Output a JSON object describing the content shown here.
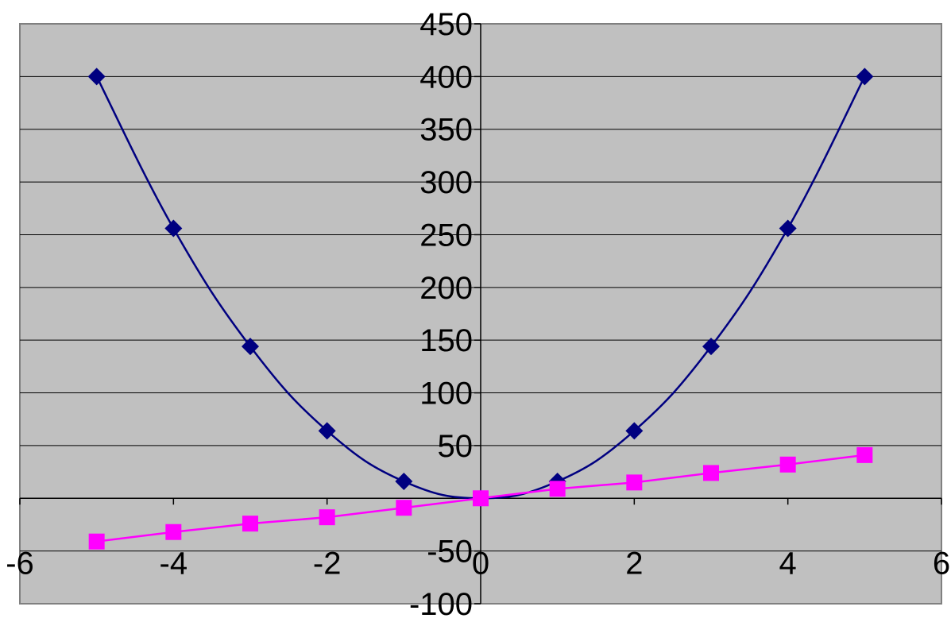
{
  "chart_data": {
    "type": "line",
    "title": "",
    "xlabel": "",
    "ylabel": "",
    "xlim": [
      -6,
      6
    ],
    "ylim": [
      -100,
      450
    ],
    "x_ticks": [
      -6,
      -4,
      -2,
      0,
      2,
      4,
      6
    ],
    "y_ticks": [
      -100,
      -50,
      0,
      50,
      100,
      150,
      200,
      250,
      300,
      350,
      400,
      450
    ],
    "x_tick_labels": [
      "-6",
      "-4",
      "-2",
      "0",
      "2",
      "4",
      "6"
    ],
    "y_tick_labels": [
      "-100",
      "-50",
      "",
      "50",
      "100",
      "150",
      "200",
      "250",
      "300",
      "350",
      "400",
      "450"
    ],
    "grid": {
      "horizontal": true,
      "vertical": false
    },
    "legend": "none",
    "plot_background": "#c0c0c0",
    "series": [
      {
        "color": "#000080",
        "marker": "diamond",
        "smooth": true,
        "x": [
          -5,
          -4,
          -3,
          -2,
          -1,
          0,
          1,
          2,
          3,
          4,
          5
        ],
        "values": [
          400,
          256,
          144,
          64,
          16,
          0,
          16,
          64,
          144,
          256,
          400
        ]
      },
      {
        "color": "#ff00ff",
        "marker": "square",
        "smooth": false,
        "x": [
          -5,
          -4,
          -3,
          -2,
          -1,
          0,
          1,
          2,
          3,
          4,
          5
        ],
        "values": [
          -41,
          -32,
          -24,
          -18,
          -9,
          0,
          9,
          15,
          24,
          32,
          41
        ]
      }
    ]
  }
}
